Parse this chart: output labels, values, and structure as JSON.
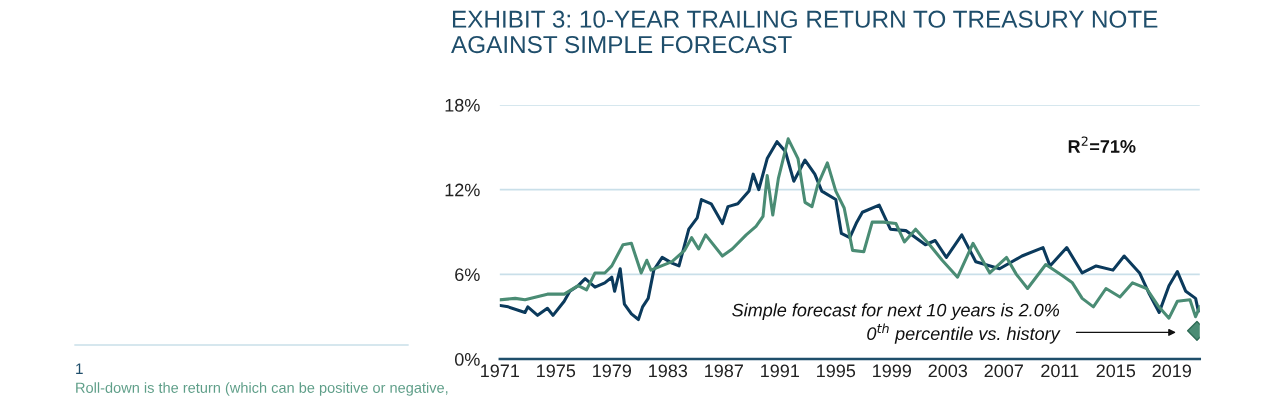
{
  "chart_data": {
    "type": "line",
    "title": "EXHIBIT 3: 10-YEAR TRAILING RETURN TO TREASURY NOTE\nAGAINST SIMPLE FORECAST",
    "series": [
      {
        "color": "#0b3a5c",
        "x": [
          1971.0,
          1971.6,
          1972.8,
          1973.0,
          1973.7,
          1974.4,
          1974.8,
          1975.6,
          1976.0,
          1976.6,
          1977.1,
          1977.8,
          1978.5,
          1979.0,
          1979.2,
          1979.6,
          1979.9,
          1980.4,
          1980.9,
          1981.2,
          1981.6,
          1982.0,
          1982.6,
          1983.3,
          1983.8,
          1984.5,
          1985.1,
          1985.4,
          1986.1,
          1986.9,
          1987.3,
          1988.0,
          1988.8,
          1989.1,
          1989.5,
          1990.1,
          1990.8,
          1991.4,
          1992.0,
          1992.8,
          1993.5,
          1994.0,
          1995.0,
          1995.4,
          1996.0,
          1996.5,
          1996.9,
          1998.1,
          1998.9,
          2000.0,
          2001.4,
          2002.1,
          2002.9,
          2004.0,
          2005.0,
          2006.7,
          2008.3,
          2009.8,
          2010.3,
          2011.5,
          2012.6,
          2013.6,
          2014.8,
          2015.6,
          2016.7,
          2017.4,
          2018.1,
          2018.8,
          2019.4,
          2020.0,
          2020.7,
          2020.9
        ],
        "values": [
          3.8,
          3.7,
          3.3,
          3.7,
          3.1,
          3.6,
          3.1,
          4.1,
          4.8,
          5.2,
          5.7,
          5.1,
          5.4,
          5.8,
          4.8,
          6.4,
          3.9,
          3.2,
          2.8,
          3.7,
          4.3,
          6.3,
          7.2,
          6.8,
          6.6,
          9.2,
          10.0,
          11.3,
          11.0,
          9.6,
          10.8,
          11.0,
          11.9,
          13.1,
          12.0,
          14.2,
          15.4,
          14.7,
          12.6,
          14.1,
          13.1,
          11.9,
          11.3,
          8.9,
          8.6,
          9.7,
          10.4,
          10.9,
          9.2,
          9.1,
          8.1,
          8.4,
          7.2,
          8.8,
          6.9,
          6.4,
          7.3,
          7.9,
          6.6,
          7.9,
          6.1,
          6.6,
          6.3,
          7.3,
          6.1,
          4.6,
          3.3,
          5.2,
          6.2,
          4.8,
          4.3,
          3.4
        ]
      },
      {
        "color": "#4a8c74",
        "x": [
          1971.0,
          1972.1,
          1972.8,
          1974.4,
          1975.6,
          1976.6,
          1977.2,
          1977.8,
          1978.5,
          1979.0,
          1979.8,
          1980.4,
          1981.1,
          1981.5,
          1981.8,
          1983.3,
          1984.2,
          1984.7,
          1985.2,
          1985.7,
          1986.9,
          1987.6,
          1988.6,
          1989.3,
          1989.8,
          1990.1,
          1990.5,
          1990.9,
          1991.6,
          1992.3,
          1992.8,
          1993.3,
          1993.7,
          1994.4,
          1995.0,
          1995.6,
          1996.2,
          1997.0,
          1997.6,
          1998.4,
          1999.3,
          1999.9,
          2000.7,
          2001.7,
          2002.6,
          2003.7,
          2004.8,
          2006.0,
          2007.2,
          2007.9,
          2008.7,
          2010.0,
          2011.2,
          2011.9,
          2012.6,
          2013.4,
          2014.3,
          2015.3,
          2016.2,
          2017.2,
          2018.0,
          2018.8,
          2019.4,
          2020.3,
          2020.7,
          2021.0
        ],
        "values": [
          4.2,
          4.3,
          4.2,
          4.6,
          4.6,
          5.2,
          4.9,
          6.1,
          6.1,
          6.6,
          8.1,
          8.2,
          6.1,
          7.0,
          6.3,
          6.9,
          7.7,
          8.6,
          7.8,
          8.8,
          7.3,
          7.8,
          8.8,
          9.4,
          10.1,
          13.0,
          10.2,
          12.8,
          15.6,
          14.2,
          11.1,
          10.8,
          12.3,
          13.9,
          11.9,
          10.7,
          7.7,
          7.6,
          9.7,
          9.7,
          9.6,
          8.3,
          9.2,
          8.1,
          7.0,
          5.8,
          8.2,
          6.1,
          7.2,
          6.0,
          5.0,
          6.7,
          5.9,
          5.4,
          4.3,
          3.7,
          5.0,
          4.4,
          5.4,
          5.0,
          3.8,
          2.9,
          4.1,
          4.2,
          3.0,
          3.7
        ]
      },
      {
        "type": "scatter",
        "color": "#4a8c74",
        "marker": "diamond",
        "x": [
          2020.8
        ],
        "values": [
          2.0
        ]
      }
    ],
    "xlim": [
      1971,
      2021
    ],
    "xticks": [
      1971,
      1975,
      1979,
      1983,
      1987,
      1991,
      1995,
      1999,
      2003,
      2007,
      2011,
      2015,
      2019
    ],
    "ylim": [
      0,
      18
    ],
    "yticks": [
      {
        "value": 0,
        "label": "0%"
      },
      {
        "value": 6,
        "label": "6%"
      },
      {
        "value": 12,
        "label": "12%"
      },
      {
        "value": 18,
        "label": "18%"
      }
    ],
    "grid": "y",
    "marker": "none",
    "line_style": "solid",
    "annotations": [
      "R$^{2}$=71%",
      "Simple forecast for next 10 years is 2.0%\n0$^{th}$ percentile vs. history",
      "1",
      "Roll-down is the return (which can be positive or negative,"
    ]
  }
}
